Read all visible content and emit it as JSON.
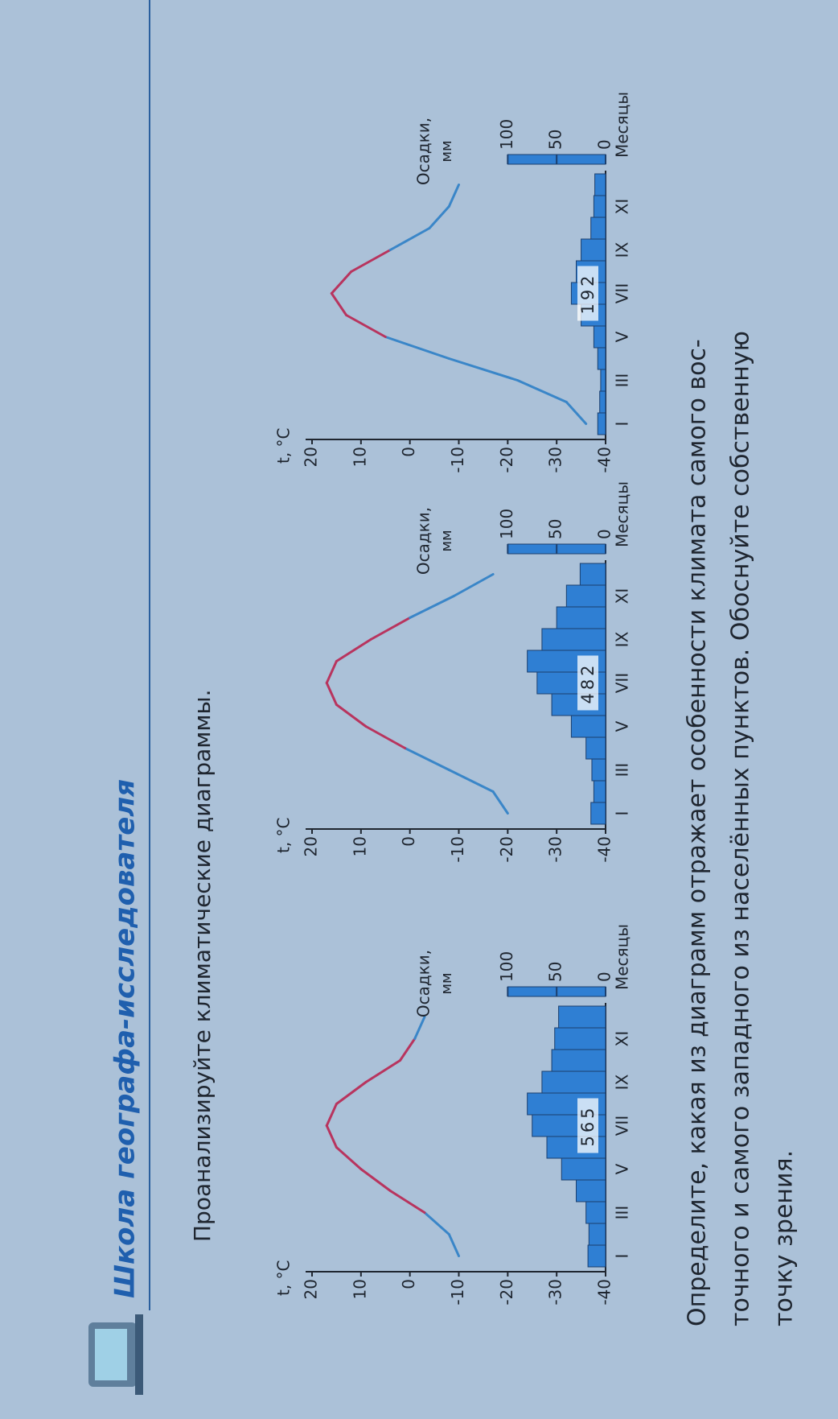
{
  "header": {
    "title": "Школа географа-исследователя"
  },
  "instruction": "Проанализируйте климатические диаграммы.",
  "chart_data": [
    {
      "type": "climate",
      "temp_label": "t, °C",
      "precip_label": [
        "Осадки,",
        "мм"
      ],
      "x_label": "Месяцы",
      "categories": [
        "I",
        null,
        "III",
        null,
        "V",
        null,
        "VII",
        null,
        "IX",
        null,
        "XI",
        null
      ],
      "temperature": [
        -10,
        -8,
        -3,
        4,
        10,
        15,
        17,
        15,
        9,
        2,
        -1,
        -3
      ],
      "precipitation": [
        18,
        17,
        20,
        30,
        45,
        60,
        75,
        80,
        65,
        55,
        52,
        48
      ],
      "annual_precipitation": 565,
      "ylim": [
        -40,
        20
      ],
      "yticks": [
        20,
        10,
        0,
        -10,
        -20,
        -30,
        -40
      ],
      "y2lim": [
        0,
        300
      ],
      "y2ticks": [
        100,
        50,
        0
      ],
      "bar_color": "#2f7fd3",
      "cold_color": "#3a86c8",
      "warm_color": "#b8345e"
    },
    {
      "type": "climate",
      "temp_label": "t, °C",
      "precip_label": [
        "Осадки,",
        "мм"
      ],
      "x_label": "Месяцы",
      "categories": [
        "I",
        null,
        "III",
        null,
        "V",
        null,
        "VII",
        null,
        "IX",
        null,
        "XI",
        null
      ],
      "temperature": [
        -20,
        -17,
        -8,
        1,
        9,
        15,
        17,
        15,
        8,
        0,
        -9,
        -17
      ],
      "precipitation": [
        15,
        12,
        14,
        20,
        35,
        55,
        70,
        80,
        65,
        50,
        40,
        26
      ],
      "annual_precipitation": 482,
      "ylim": [
        -40,
        20
      ],
      "yticks": [
        20,
        10,
        0,
        -10,
        -20,
        -30,
        -40
      ],
      "y2lim": [
        0,
        300
      ],
      "y2ticks": [
        100,
        50,
        0
      ],
      "bar_color": "#2f7fd3",
      "cold_color": "#3a86c8",
      "warm_color": "#b8345e"
    },
    {
      "type": "climate",
      "temp_label": "t, °C",
      "precip_label": [
        "Осадки,",
        "мм"
      ],
      "x_label": "Месяцы",
      "categories": [
        "I",
        null,
        "III",
        null,
        "V",
        null,
        "VII",
        null,
        "IX",
        null,
        "XI",
        null
      ],
      "temperature": [
        -36,
        -32,
        -22,
        -8,
        5,
        13,
        16,
        12,
        4,
        -4,
        -8,
        -10
      ],
      "precipitation": [
        8,
        6,
        5,
        8,
        12,
        25,
        35,
        30,
        25,
        15,
        12,
        11
      ],
      "annual_precipitation": 192,
      "ylim": [
        -40,
        20
      ],
      "yticks": [
        20,
        10,
        0,
        -10,
        -20,
        -30,
        -40
      ],
      "y2lim": [
        0,
        300
      ],
      "y2ticks": [
        100,
        50,
        0
      ],
      "bar_color": "#2f7fd3",
      "cold_color": "#3a86c8",
      "warm_color": "#b8345e"
    }
  ],
  "question": [
    "Определите, какая из диаграмм отражает особенности климата самого вос-",
    "точного и самого западного из населённых пунктов. Обоснуйте собственную",
    "точку зрения."
  ]
}
